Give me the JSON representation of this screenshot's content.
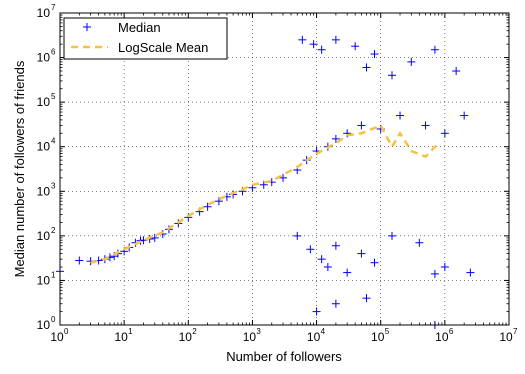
{
  "chart_data": {
    "type": "scatter",
    "xlabel": "Number of followers",
    "ylabel": "Median number of followers of friends",
    "x_scale": "log",
    "y_scale": "log",
    "xlim": [
      1,
      10000000
    ],
    "ylim": [
      1,
      10000000
    ],
    "grid": true,
    "legend_position": "top-left",
    "x_ticks": [
      {
        "value": 1,
        "base": "10",
        "exp": "0"
      },
      {
        "value": 10,
        "base": "10",
        "exp": "1"
      },
      {
        "value": 100,
        "base": "10",
        "exp": "2"
      },
      {
        "value": 1000,
        "base": "10",
        "exp": "3"
      },
      {
        "value": 10000,
        "base": "10",
        "exp": "4"
      },
      {
        "value": 100000,
        "base": "10",
        "exp": "5"
      },
      {
        "value": 1000000,
        "base": "10",
        "exp": "6"
      },
      {
        "value": 10000000,
        "base": "10",
        "exp": "7"
      }
    ],
    "y_ticks": [
      {
        "value": 1,
        "base": "10",
        "exp": "0"
      },
      {
        "value": 10,
        "base": "10",
        "exp": "1"
      },
      {
        "value": 100,
        "base": "10",
        "exp": "2"
      },
      {
        "value": 1000,
        "base": "10",
        "exp": "3"
      },
      {
        "value": 10000,
        "base": "10",
        "exp": "4"
      },
      {
        "value": 100000,
        "base": "10",
        "exp": "5"
      },
      {
        "value": 1000000,
        "base": "10",
        "exp": "6"
      },
      {
        "value": 10000000,
        "base": "10",
        "exp": "7"
      }
    ],
    "series": [
      {
        "name": "Median",
        "style": "marker-plus",
        "color": "#0000ff",
        "points": [
          [
            1,
            16
          ],
          [
            2,
            28
          ],
          [
            3,
            27
          ],
          [
            4,
            28
          ],
          [
            5,
            30
          ],
          [
            6,
            33
          ],
          [
            7,
            35
          ],
          [
            8,
            40
          ],
          [
            10,
            45
          ],
          [
            12,
            55
          ],
          [
            15,
            70
          ],
          [
            18,
            78
          ],
          [
            20,
            80
          ],
          [
            25,
            85
          ],
          [
            30,
            90
          ],
          [
            40,
            110
          ],
          [
            50,
            140
          ],
          [
            70,
            190
          ],
          [
            100,
            260
          ],
          [
            150,
            350
          ],
          [
            200,
            450
          ],
          [
            300,
            600
          ],
          [
            400,
            750
          ],
          [
            500,
            850
          ],
          [
            700,
            1000
          ],
          [
            1000,
            1200
          ],
          [
            1500,
            1400
          ],
          [
            2000,
            1600
          ],
          [
            3000,
            2000
          ],
          [
            5000,
            3000
          ],
          [
            7000,
            5000
          ],
          [
            10000,
            8000
          ],
          [
            15000,
            10000
          ],
          [
            20000,
            15000
          ],
          [
            30000,
            20000
          ],
          [
            50000,
            30000
          ],
          [
            100000,
            25000
          ],
          [
            200000,
            50000
          ],
          [
            500000,
            30000
          ],
          [
            1000000,
            20000
          ],
          [
            2000000,
            50000
          ],
          [
            6000,
            2500000
          ],
          [
            9000,
            2000000
          ],
          [
            12000,
            1500000
          ],
          [
            20000,
            2500000
          ],
          [
            40000,
            1800000
          ],
          [
            60000,
            600000
          ],
          [
            80000,
            1200000
          ],
          [
            150000,
            400000
          ],
          [
            300000,
            800000
          ],
          [
            700000,
            1500000
          ],
          [
            1500000,
            500000
          ],
          [
            5000,
            100
          ],
          [
            8000,
            50
          ],
          [
            12000,
            30
          ],
          [
            15000,
            20
          ],
          [
            20000,
            60
          ],
          [
            30000,
            15
          ],
          [
            50000,
            40
          ],
          [
            80000,
            25
          ],
          [
            150000,
            100
          ],
          [
            400000,
            70
          ],
          [
            700000,
            14
          ],
          [
            1000000,
            20
          ],
          [
            2500000,
            15
          ],
          [
            10000,
            2
          ],
          [
            20000,
            3
          ],
          [
            60000,
            4
          ],
          [
            700000,
            1
          ]
        ]
      },
      {
        "name": "LogScale Mean",
        "style": "dashed-line",
        "color": "#f5c242",
        "points": [
          [
            3,
            25
          ],
          [
            5,
            30
          ],
          [
            10,
            50
          ],
          [
            20,
            80
          ],
          [
            40,
            120
          ],
          [
            70,
            200
          ],
          [
            100,
            280
          ],
          [
            200,
            500
          ],
          [
            400,
            800
          ],
          [
            700,
            1100
          ],
          [
            1000,
            1400
          ],
          [
            2000,
            1700
          ],
          [
            5000,
            3500
          ],
          [
            10000,
            7000
          ],
          [
            20000,
            12000
          ],
          [
            30000,
            18000
          ],
          [
            50000,
            20000
          ],
          [
            100000,
            30000
          ],
          [
            150000,
            10000
          ],
          [
            200000,
            20000
          ],
          [
            300000,
            8000
          ],
          [
            500000,
            6000
          ],
          [
            800000,
            12000
          ]
        ]
      }
    ]
  }
}
